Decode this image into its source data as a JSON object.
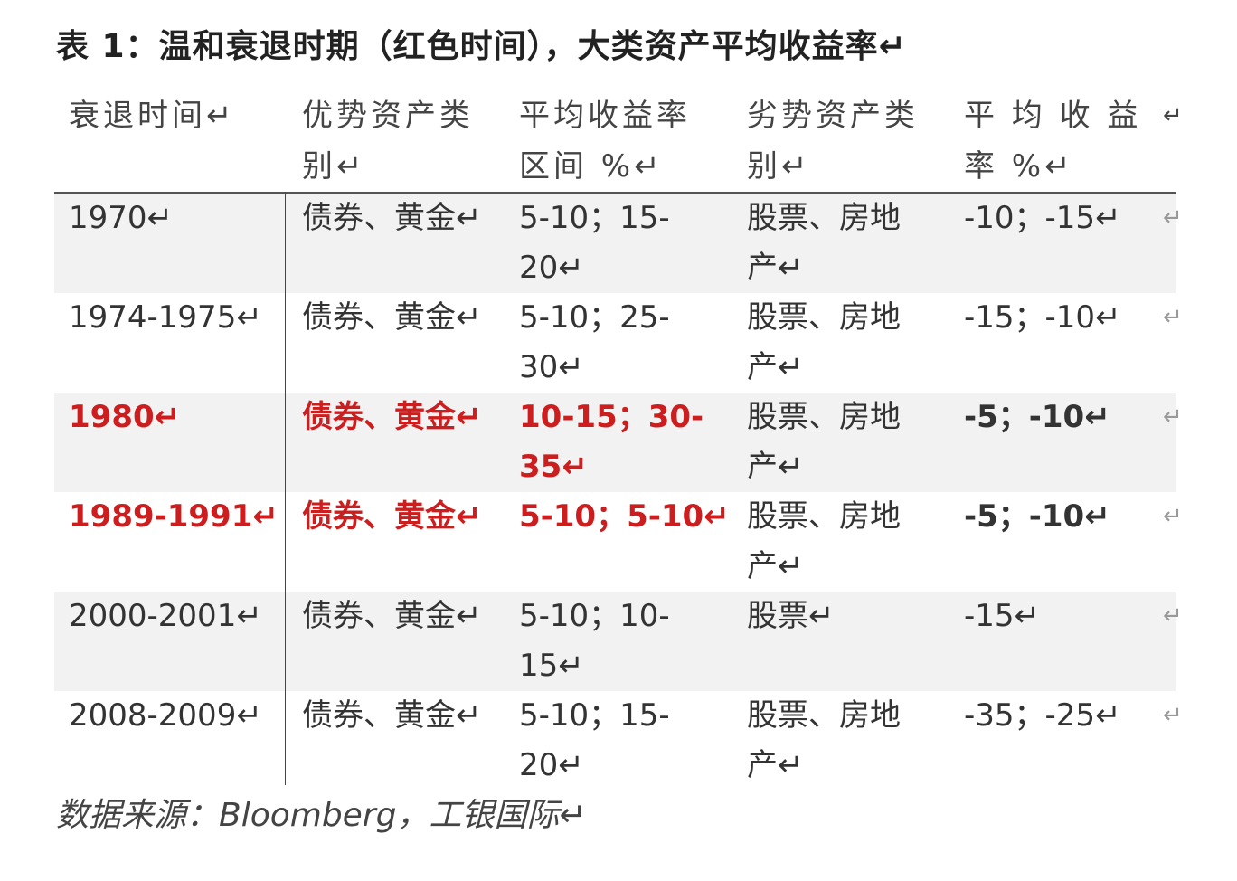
{
  "title": "表 1：温和衰退时期（红色时间），大类资产平均收益率↵",
  "table": {
    "headers": [
      "衰退时间↵",
      "优势资产类\n别↵",
      "平均收益率\n区间 %↵",
      "劣势资产类\n别↵",
      "平 均 收 益\n率 %↵",
      "↵"
    ],
    "rows": [
      {
        "period": "1970↵",
        "strong": "债券、黄金↵",
        "strong_return": "5-10；15-\n20↵",
        "weak": "股票、房地\n产↵",
        "weak_return": "-10；-15↵",
        "end": "↵"
      },
      {
        "period": "1974-1975↵",
        "strong": "债券、黄金↵",
        "strong_return": "5-10；25-\n30↵",
        "weak": "股票、房地\n产↵",
        "weak_return": "-15；-10↵",
        "end": "↵"
      },
      {
        "period": "1980↵",
        "strong": "债券、黄金↵",
        "strong_return": "10-15；30-\n35↵",
        "weak": "股票、房地\n产↵",
        "weak_return": "-5；-10↵",
        "end": "↵"
      },
      {
        "period": "1989-1991↵",
        "strong": "债券、黄金↵",
        "strong_return": "5-10；5-10↵",
        "weak": "股票、房地\n产↵",
        "weak_return": "-5；-10↵",
        "end": "↵"
      },
      {
        "period": "2000-2001↵",
        "strong": "债券、黄金↵",
        "strong_return": "5-10；10-\n15↵",
        "weak": "股票↵",
        "weak_return": "-15↵",
        "end": "↵"
      },
      {
        "period": "2008-2009↵",
        "strong": "债券、黄金↵",
        "strong_return": "5-10；15-\n20↵",
        "weak": "股票、房地\n产↵",
        "weak_return": "-35；-25↵",
        "end": "↵"
      }
    ]
  },
  "source": "数据来源：Bloomberg，工银国际↵",
  "colors": {
    "highlight": "#cc1e1e",
    "row_shade": "#f2f2f2",
    "text": "#333333"
  }
}
